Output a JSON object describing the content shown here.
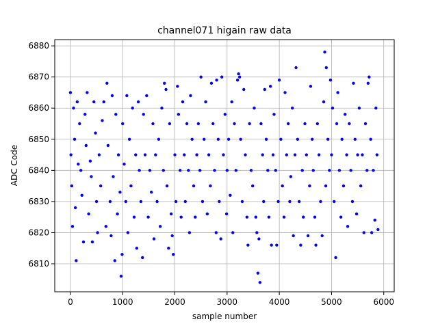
{
  "chart_data": {
    "type": "scatter",
    "title": "channel071 higain raw data",
    "xlabel": "sample number",
    "ylabel": "ADC Code",
    "xlim": [
      -300,
      6200
    ],
    "ylim": [
      6801,
      6882
    ],
    "x_ticks": [
      0,
      1000,
      2000,
      3000,
      4000,
      5000,
      6000
    ],
    "x_tick_labels": [
      "0",
      "1000",
      "2000",
      "3000",
      "4000",
      "5000",
      "6000"
    ],
    "y_ticks": [
      6810,
      6820,
      6830,
      6840,
      6850,
      6860,
      6870,
      6880
    ],
    "y_tick_labels": [
      "6810",
      "6820",
      "6830",
      "6840",
      "6850",
      "6860",
      "6870",
      "6880"
    ],
    "grid": true,
    "marker": "circle",
    "color": "#0000ff",
    "series": [
      {
        "points": [
          [
            0,
            6865
          ],
          [
            10,
            6845
          ],
          [
            25,
            6835
          ],
          [
            40,
            6822
          ],
          [
            60,
            6860
          ],
          [
            80,
            6850
          ],
          [
            95,
            6828
          ],
          [
            110,
            6811
          ],
          [
            130,
            6862
          ],
          [
            150,
            6842
          ],
          [
            175,
            6855
          ],
          [
            200,
            6840
          ],
          [
            220,
            6832
          ],
          [
            250,
            6817
          ],
          [
            280,
            6858
          ],
          [
            300,
            6848
          ],
          [
            320,
            6865
          ],
          [
            350,
            6826
          ],
          [
            380,
            6843
          ],
          [
            400,
            6838
          ],
          [
            420,
            6817
          ],
          [
            450,
            6862
          ],
          [
            480,
            6852
          ],
          [
            500,
            6830
          ],
          [
            520,
            6820
          ],
          [
            550,
            6845
          ],
          [
            580,
            6835
          ],
          [
            610,
            6856
          ],
          [
            640,
            6862
          ],
          [
            680,
            6822
          ],
          [
            700,
            6868
          ],
          [
            720,
            6848
          ],
          [
            760,
            6830
          ],
          [
            780,
            6819
          ],
          [
            800,
            6864
          ],
          [
            820,
            6838
          ],
          [
            850,
            6811
          ],
          [
            870,
            6858
          ],
          [
            900,
            6826
          ],
          [
            920,
            6845
          ],
          [
            950,
            6833
          ],
          [
            970,
            6806
          ],
          [
            990,
            6813
          ],
          [
            1000,
            6855
          ],
          [
            1030,
            6842
          ],
          [
            1060,
            6830
          ],
          [
            1080,
            6864
          ],
          [
            1100,
            6820
          ],
          [
            1130,
            6850
          ],
          [
            1160,
            6835
          ],
          [
            1190,
            6860
          ],
          [
            1220,
            6825
          ],
          [
            1250,
            6845
          ],
          [
            1270,
            6815
          ],
          [
            1300,
            6862
          ],
          [
            1320,
            6840
          ],
          [
            1350,
            6830
          ],
          [
            1380,
            6812
          ],
          [
            1400,
            6858
          ],
          [
            1430,
            6845
          ],
          [
            1460,
            6864
          ],
          [
            1490,
            6825
          ],
          [
            1520,
            6840
          ],
          [
            1550,
            6833
          ],
          [
            1580,
            6855
          ],
          [
            1600,
            6818
          ],
          [
            1630,
            6845
          ],
          [
            1660,
            6830
          ],
          [
            1690,
            6850
          ],
          [
            1720,
            6822
          ],
          [
            1750,
            6860
          ],
          [
            1780,
            6840
          ],
          [
            1800,
            6868
          ],
          [
            1830,
            6866
          ],
          [
            1850,
            6835
          ],
          [
            1880,
            6815
          ],
          [
            1900,
            6855
          ],
          [
            1930,
            6826
          ],
          [
            1950,
            6819
          ],
          [
            1970,
            6813
          ],
          [
            2000,
            6845
          ],
          [
            2020,
            6830
          ],
          [
            2050,
            6867
          ],
          [
            2070,
            6858
          ],
          [
            2100,
            6840
          ],
          [
            2120,
            6825
          ],
          [
            2150,
            6862
          ],
          [
            2180,
            6845
          ],
          [
            2200,
            6830
          ],
          [
            2230,
            6855
          ],
          [
            2260,
            6840
          ],
          [
            2280,
            6820
          ],
          [
            2300,
            6864
          ],
          [
            2330,
            6850
          ],
          [
            2360,
            6835
          ],
          [
            2390,
            6825
          ],
          [
            2420,
            6845
          ],
          [
            2450,
            6855
          ],
          [
            2480,
            6840
          ],
          [
            2500,
            6870
          ],
          [
            2530,
            6830
          ],
          [
            2560,
            6850
          ],
          [
            2590,
            6862
          ],
          [
            2620,
            6826
          ],
          [
            2650,
            6845
          ],
          [
            2680,
            6835
          ],
          [
            2700,
            6868
          ],
          [
            2730,
            6855
          ],
          [
            2760,
            6840
          ],
          [
            2790,
            6820
          ],
          [
            2800,
            6869
          ],
          [
            2830,
            6850
          ],
          [
            2850,
            6830
          ],
          [
            2880,
            6818
          ],
          [
            2900,
            6870
          ],
          [
            2930,
            6845
          ],
          [
            2960,
            6858
          ],
          [
            2990,
            6826
          ],
          [
            3000,
            6840
          ],
          [
            3030,
            6850
          ],
          [
            3060,
            6832
          ],
          [
            3090,
            6862
          ],
          [
            3110,
            6820
          ],
          [
            3140,
            6855
          ],
          [
            3170,
            6840
          ],
          [
            3200,
            6869
          ],
          [
            3220,
            6871
          ],
          [
            3240,
            6870
          ],
          [
            3260,
            6850
          ],
          [
            3290,
            6830
          ],
          [
            3320,
            6866
          ],
          [
            3350,
            6845
          ],
          [
            3380,
            6825
          ],
          [
            3400,
            6816
          ],
          [
            3430,
            6855
          ],
          [
            3460,
            6840
          ],
          [
            3490,
            6835
          ],
          [
            3520,
            6860
          ],
          [
            3550,
            6825
          ],
          [
            3570,
            6820
          ],
          [
            3590,
            6807
          ],
          [
            3610,
            6818
          ],
          [
            3630,
            6804
          ],
          [
            3650,
            6855
          ],
          [
            3680,
            6845
          ],
          [
            3700,
            6830
          ],
          [
            3720,
            6866
          ],
          [
            3750,
            6850
          ],
          [
            3780,
            6840
          ],
          [
            3800,
            6825
          ],
          [
            3830,
            6867
          ],
          [
            3850,
            6816
          ],
          [
            3880,
            6845
          ],
          [
            3900,
            6858
          ],
          [
            3930,
            6840
          ],
          [
            3950,
            6816
          ],
          [
            3980,
            6830
          ],
          [
            4000,
            6869
          ],
          [
            4030,
            6850
          ],
          [
            4060,
            6835
          ],
          [
            4090,
            6825
          ],
          [
            4110,
            6865
          ],
          [
            4140,
            6845
          ],
          [
            4170,
            6855
          ],
          [
            4200,
            6830
          ],
          [
            4220,
            6838
          ],
          [
            4250,
            6860
          ],
          [
            4270,
            6819
          ],
          [
            4300,
            6845
          ],
          [
            4320,
            6873
          ],
          [
            4350,
            6850
          ],
          [
            4380,
            6830
          ],
          [
            4410,
            6816
          ],
          [
            4440,
            6840
          ],
          [
            4460,
            6825
          ],
          [
            4490,
            6855
          ],
          [
            4520,
            6845
          ],
          [
            4550,
            6819
          ],
          [
            4580,
            6835
          ],
          [
            4600,
            6867
          ],
          [
            4630,
            6850
          ],
          [
            4650,
            6840
          ],
          [
            4680,
            6825
          ],
          [
            4700,
            6816
          ],
          [
            4730,
            6855
          ],
          [
            4760,
            6845
          ],
          [
            4790,
            6830
          ],
          [
            4820,
            6819
          ],
          [
            4850,
            6862
          ],
          [
            4870,
            6878
          ],
          [
            4890,
            6835
          ],
          [
            4900,
            6873
          ],
          [
            4930,
            6850
          ],
          [
            4960,
            6840
          ],
          [
            4980,
            6869
          ],
          [
            5000,
            6845
          ],
          [
            5020,
            6860
          ],
          [
            5050,
            6830
          ],
          [
            5080,
            6812
          ],
          [
            5100,
            6855
          ],
          [
            5120,
            6865
          ],
          [
            5150,
            6840
          ],
          [
            5180,
            6825
          ],
          [
            5200,
            6850
          ],
          [
            5230,
            6835
          ],
          [
            5260,
            6858
          ],
          [
            5290,
            6845
          ],
          [
            5310,
            6822
          ],
          [
            5340,
            6855
          ],
          [
            5370,
            6840
          ],
          [
            5400,
            6830
          ],
          [
            5420,
            6868
          ],
          [
            5450,
            6850
          ],
          [
            5480,
            6826
          ],
          [
            5500,
            6845
          ],
          [
            5530,
            6860
          ],
          [
            5560,
            6835
          ],
          [
            5590,
            6845
          ],
          [
            5620,
            6820
          ],
          [
            5650,
            6855
          ],
          [
            5680,
            6840
          ],
          [
            5700,
            6868
          ],
          [
            5720,
            6870
          ],
          [
            5750,
            6850
          ],
          [
            5770,
            6820
          ],
          [
            5800,
            6840
          ],
          [
            5830,
            6824
          ],
          [
            5850,
            6860
          ],
          [
            5870,
            6845
          ],
          [
            5890,
            6821
          ]
        ]
      }
    ]
  }
}
